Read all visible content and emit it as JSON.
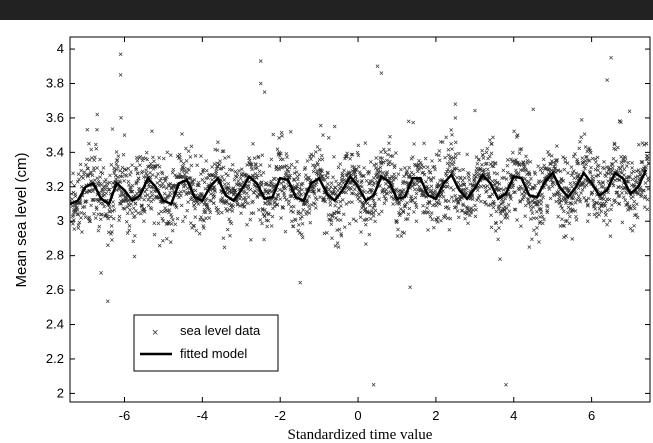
{
  "chart_data": {
    "type": "scatter",
    "title": "",
    "xlabel": "Standardized time value",
    "ylabel": "Mean sea level (cm)",
    "xlim": [
      -7.4,
      7.5
    ],
    "ylim": [
      1.95,
      4.07
    ],
    "xticks": [
      -6,
      -4,
      -2,
      0,
      2,
      4,
      6
    ],
    "yticks": [
      2,
      2.2,
      2.4,
      2.6,
      2.8,
      3,
      3.2,
      3.4,
      3.6,
      3.8,
      4
    ],
    "xtick_labels": [
      "-6",
      "-4",
      "-2",
      "0",
      "2",
      "4",
      "6"
    ],
    "ytick_labels": [
      "2",
      "2.2",
      "2.4",
      "2.6",
      "2.8",
      "3",
      "3.2",
      "3.4",
      "3.6",
      "3.8",
      "4"
    ],
    "grid": false,
    "legend": {
      "placement": "bottom-left",
      "entries": [
        "sea level data",
        "fitted model"
      ]
    },
    "series": [
      {
        "name": "sea level data",
        "marker": "x",
        "color": "#333333",
        "description_points": "dense scatter around mean ~3.15 with spread ~0.15",
        "x": [
          -7.3,
          -7.1,
          -6.9,
          -6.7,
          -6.6,
          -6.4,
          -6.2,
          -6.1,
          -5.9,
          -5.7,
          -5.5,
          -5.3,
          -5.1,
          -4.9,
          -4.7,
          -4.5,
          -4.3,
          -4.1,
          -3.9,
          -3.7,
          -3.5,
          -3.3,
          -3.1,
          -2.9,
          -2.7,
          -2.5,
          -2.3,
          -2.1,
          -1.9,
          -1.7,
          -1.5,
          -1.3,
          -1.1,
          -0.9,
          -0.7,
          -0.5,
          -0.3,
          -0.1,
          0.1,
          0.3,
          0.5,
          0.7,
          0.9,
          1.1,
          1.3,
          1.5,
          1.7,
          1.9,
          2.1,
          2.3,
          2.5,
          2.7,
          2.9,
          3.1,
          3.3,
          3.5,
          3.7,
          3.9,
          4.1,
          4.3,
          4.5,
          4.7,
          4.9,
          5.1,
          5.3,
          5.5,
          5.7,
          5.9,
          6.1,
          6.3,
          6.5,
          6.7,
          6.9,
          7.1,
          7.3,
          -6.1,
          -6.7,
          -2.5,
          0.4,
          0.6,
          0.4,
          3.8,
          4.4,
          6.4,
          2.5,
          -6.0,
          -2.4,
          -0.6,
          1.3
        ],
        "y": [
          3.05,
          3.2,
          3.0,
          3.25,
          2.7,
          3.1,
          3.3,
          3.97,
          3.1,
          3.3,
          3.0,
          3.2,
          3.15,
          3.4,
          3.1,
          3.0,
          3.25,
          3.1,
          3.35,
          3.2,
          3.05,
          3.3,
          3.1,
          3.2,
          3.45,
          3.93,
          3.1,
          3.3,
          3.2,
          3.0,
          3.15,
          3.35,
          3.1,
          3.5,
          3.2,
          2.85,
          3.1,
          3.3,
          3.2,
          3.05,
          3.9,
          3.4,
          3.1,
          3.3,
          3.2,
          3.0,
          3.15,
          3.35,
          3.1,
          3.2,
          3.6,
          3.3,
          3.05,
          3.2,
          3.4,
          3.1,
          3.25,
          3.2,
          3.5,
          3.3,
          3.65,
          3.1,
          3.2,
          3.35,
          3.3,
          3.1,
          3.25,
          3.0,
          3.3,
          3.2,
          3.95,
          3.1,
          3.25,
          3.2,
          3.3,
          3.85,
          3.62,
          3.8,
          2.05,
          3.86,
          3.12,
          2.05,
          2.85,
          3.82,
          3.68,
          3.5,
          3.75,
          3.55,
          3.58
        ]
      },
      {
        "name": "fitted model",
        "line": "solid",
        "color": "#000000",
        "x": [
          -7.4,
          -7.2,
          -7.0,
          -6.8,
          -6.6,
          -6.4,
          -6.2,
          -6.0,
          -5.8,
          -5.6,
          -5.4,
          -5.2,
          -5.0,
          -4.8,
          -4.6,
          -4.4,
          -4.2,
          -4.0,
          -3.8,
          -3.6,
          -3.4,
          -3.2,
          -3.0,
          -2.8,
          -2.6,
          -2.4,
          -2.2,
          -2.0,
          -1.8,
          -1.6,
          -1.4,
          -1.2,
          -1.0,
          -0.8,
          -0.6,
          -0.4,
          -0.2,
          0.0,
          0.2,
          0.4,
          0.6,
          0.8,
          1.0,
          1.2,
          1.4,
          1.6,
          1.8,
          2.0,
          2.2,
          2.4,
          2.6,
          2.8,
          3.0,
          3.2,
          3.4,
          3.6,
          3.8,
          4.0,
          4.2,
          4.4,
          4.6,
          4.8,
          5.0,
          5.2,
          5.4,
          5.6,
          5.8,
          6.0,
          6.2,
          6.4,
          6.6,
          6.8,
          7.0,
          7.2,
          7.4
        ],
        "y": [
          3.1,
          3.12,
          3.2,
          3.22,
          3.13,
          3.1,
          3.22,
          3.18,
          3.12,
          3.15,
          3.25,
          3.2,
          3.12,
          3.1,
          3.22,
          3.24,
          3.14,
          3.12,
          3.2,
          3.25,
          3.15,
          3.12,
          3.18,
          3.26,
          3.22,
          3.13,
          3.14,
          3.25,
          3.24,
          3.14,
          3.12,
          3.22,
          3.25,
          3.16,
          3.12,
          3.18,
          3.26,
          3.2,
          3.12,
          3.15,
          3.26,
          3.23,
          3.13,
          3.14,
          3.25,
          3.25,
          3.15,
          3.13,
          3.22,
          3.27,
          3.18,
          3.13,
          3.19,
          3.27,
          3.22,
          3.13,
          3.16,
          3.26,
          3.25,
          3.15,
          3.14,
          3.23,
          3.28,
          3.19,
          3.14,
          3.2,
          3.28,
          3.22,
          3.15,
          3.18,
          3.28,
          3.25,
          3.16,
          3.2,
          3.3
        ]
      }
    ]
  }
}
